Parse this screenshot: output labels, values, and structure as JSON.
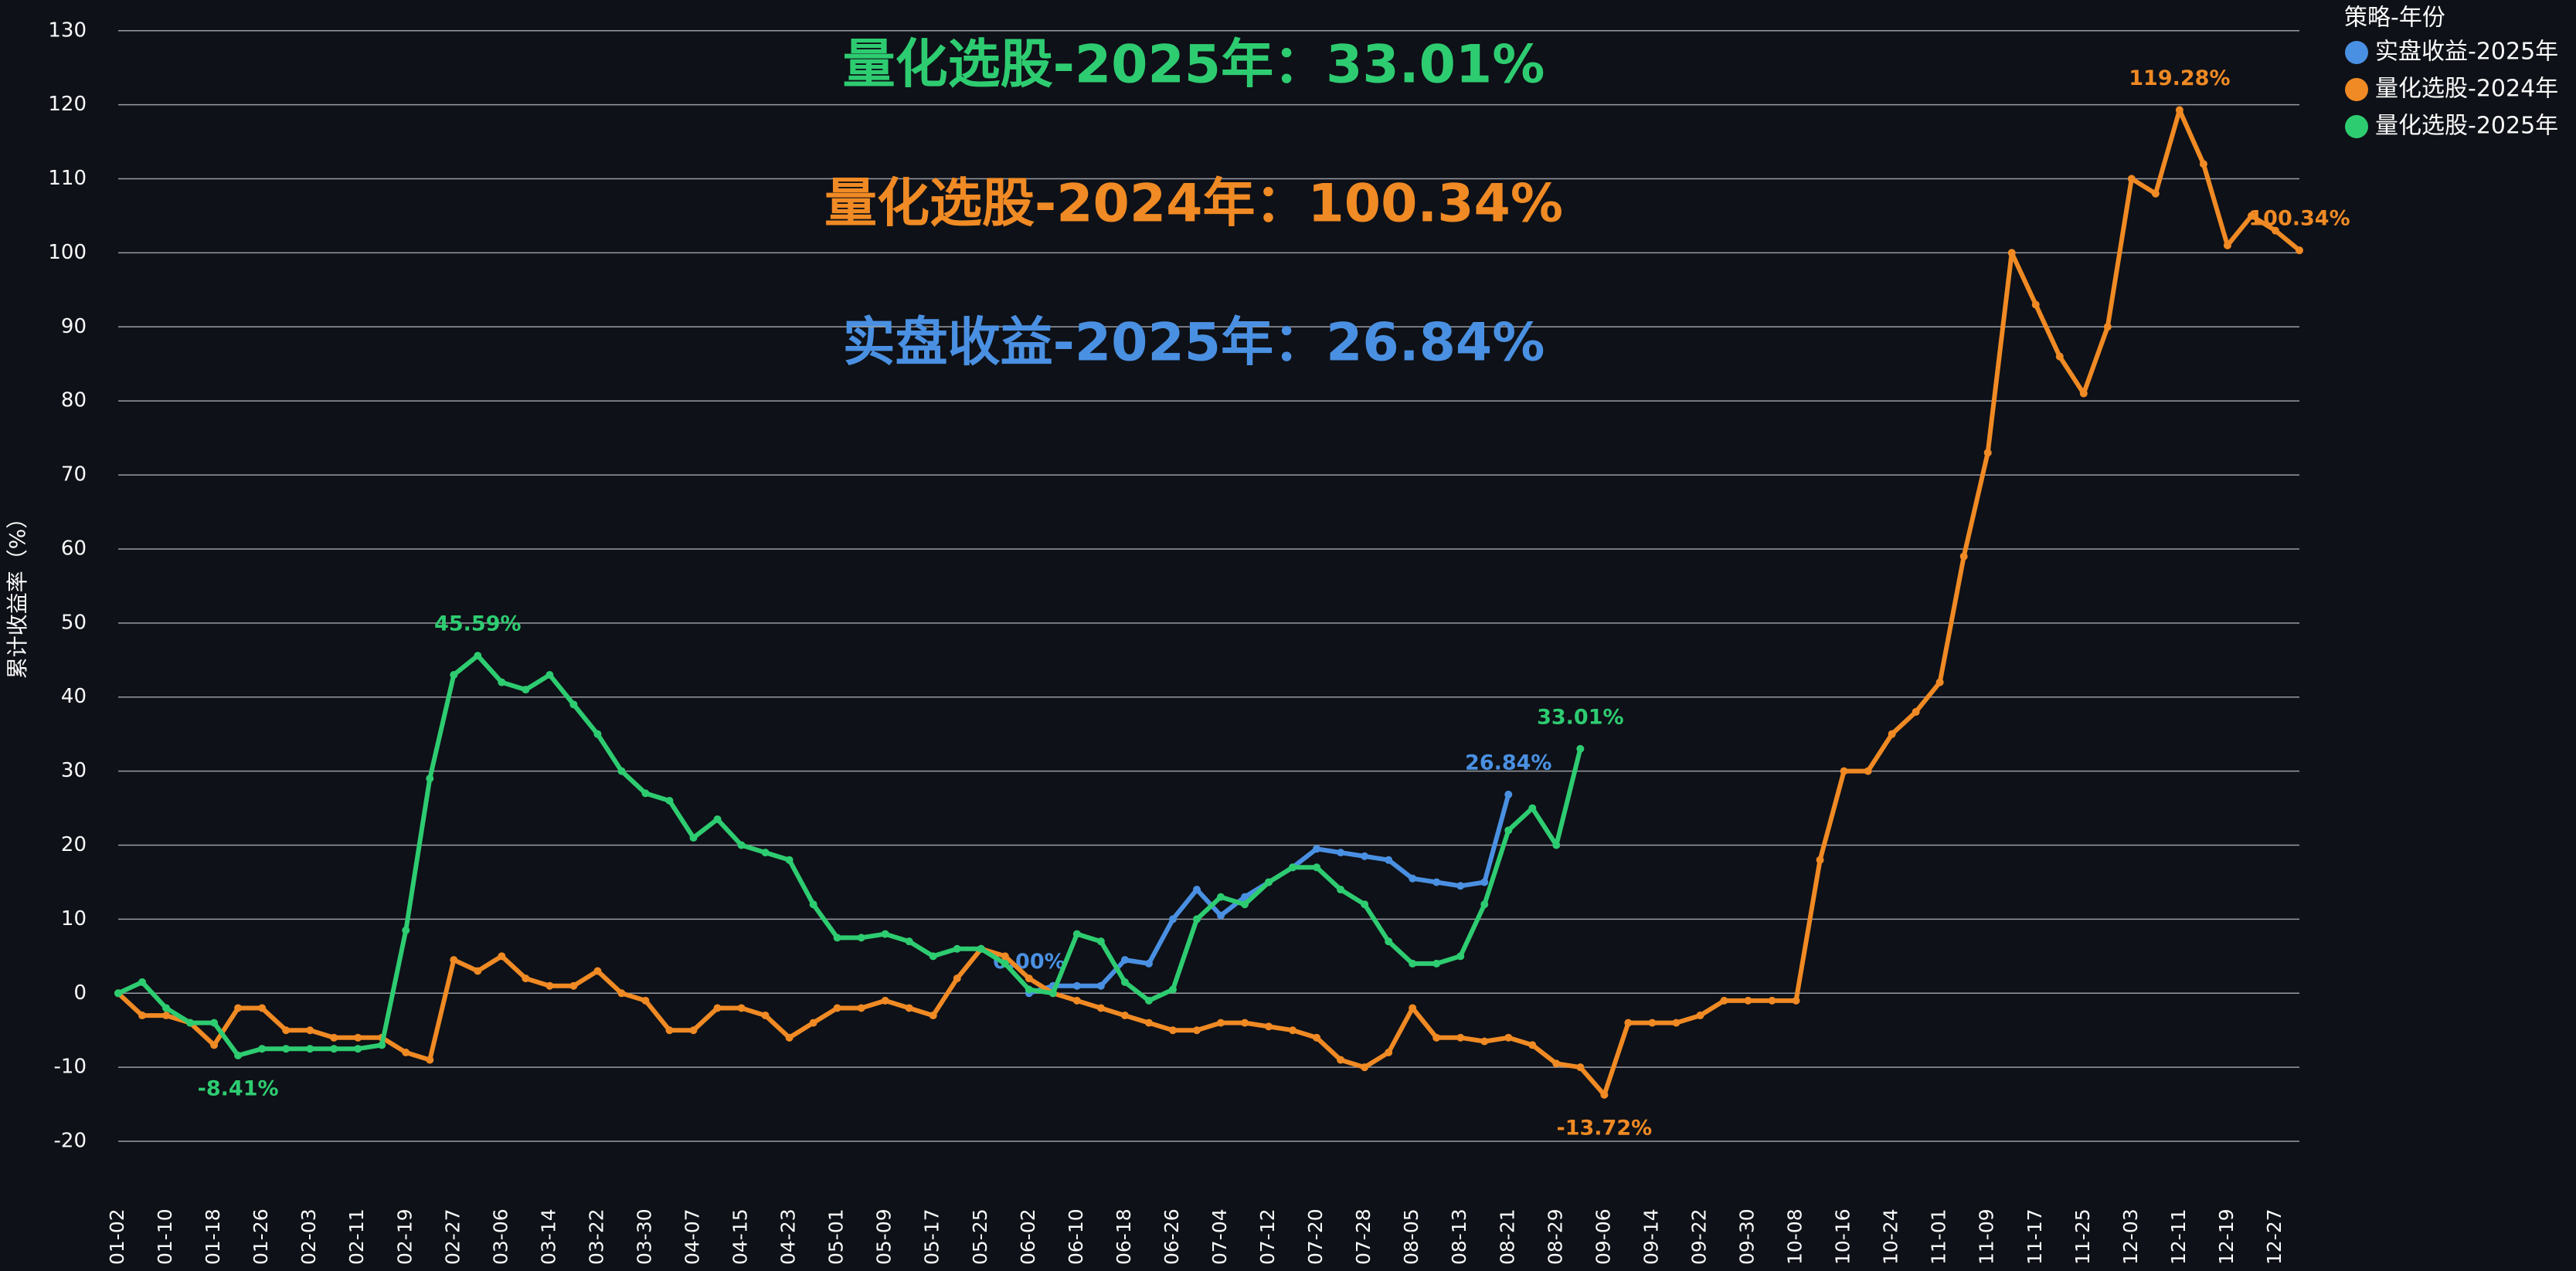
{
  "chart_data": {
    "type": "line",
    "y_label": "累计收益率（%）",
    "legend_title": "策略-年份",
    "legend_position": "right",
    "grid": true,
    "annotations": [
      {
        "text": "量化选股-2025年：33.01%",
        "color": "#2ecc71"
      },
      {
        "text": "量化选股-2024年：100.34%",
        "color": "#f08a24"
      },
      {
        "text": "实盘收益-2025年：26.84%",
        "color": "#4a90e2"
      }
    ],
    "categories": [
      "01-02",
      null,
      "01-10",
      null,
      "01-18",
      null,
      "01-26",
      null,
      "02-03",
      null,
      "02-11",
      null,
      "02-19",
      null,
      "02-27",
      null,
      "03-06",
      null,
      "03-14",
      null,
      "03-22",
      null,
      "03-30",
      null,
      "04-07",
      null,
      "04-15",
      null,
      "04-23",
      null,
      "05-01",
      null,
      "05-09",
      null,
      "05-17",
      null,
      "05-25",
      null,
      "06-02",
      null,
      "06-10",
      null,
      "06-18",
      null,
      "06-26",
      null,
      "07-04",
      null,
      "07-12",
      null,
      "07-20",
      null,
      "07-28",
      null,
      "08-05",
      null,
      "08-13",
      null,
      "08-21",
      null,
      "08-29",
      null,
      "09-06",
      null,
      "09-14",
      null,
      "09-22",
      null,
      "09-30",
      null,
      "10-08",
      null,
      "10-16",
      null,
      "10-24",
      null,
      "11-01",
      null,
      "11-09",
      null,
      "11-17",
      null,
      "11-25",
      null,
      "12-03",
      null,
      "12-11",
      null,
      "12-19",
      null,
      "12-27",
      null
    ],
    "series": [
      {
        "name": "实盘收益-2025年",
        "color": "#4a90e2",
        "values": [
          null,
          null,
          null,
          null,
          null,
          null,
          null,
          null,
          null,
          null,
          null,
          null,
          null,
          null,
          null,
          null,
          null,
          null,
          null,
          null,
          null,
          null,
          null,
          null,
          null,
          null,
          null,
          null,
          null,
          null,
          null,
          null,
          null,
          null,
          null,
          null,
          null,
          null,
          0,
          1,
          1,
          1,
          4.5,
          4,
          10,
          14,
          10.5,
          13,
          15,
          17,
          19.5,
          19,
          18.5,
          18,
          15.5,
          15,
          14.5,
          15,
          26.84,
          null,
          null,
          null,
          null,
          null,
          null,
          null,
          null,
          null,
          null,
          null,
          null,
          null,
          null,
          null,
          null,
          null,
          null,
          null,
          null,
          null,
          null,
          null,
          null,
          null,
          null,
          null,
          null,
          null,
          null,
          null,
          null,
          null
        ],
        "value_labels": [
          null,
          null,
          null,
          null,
          null,
          null,
          null,
          null,
          null,
          null,
          null,
          null,
          null,
          null,
          null,
          null,
          null,
          null,
          null,
          null,
          null,
          null,
          null,
          null,
          null,
          null,
          null,
          null,
          null,
          null,
          null,
          null,
          null,
          null,
          null,
          null,
          null,
          null,
          "0.00%",
          null,
          null,
          null,
          null,
          null,
          null,
          null,
          null,
          null,
          null,
          null,
          null,
          null,
          null,
          null,
          null,
          null,
          null,
          null,
          "26.84%",
          null,
          null,
          null,
          null,
          null,
          null,
          null,
          null,
          null,
          null,
          null,
          null,
          null,
          null,
          null,
          null,
          null,
          null,
          null,
          null,
          null,
          null,
          null,
          null,
          null,
          null,
          null,
          null,
          null,
          null,
          null,
          null,
          null
        ]
      },
      {
        "name": "量化选股-2024年",
        "color": "#f08a24",
        "values": [
          0,
          -3,
          -3,
          -4,
          -7,
          -2,
          -2,
          -5,
          -5,
          -6,
          -6,
          -6,
          -8,
          -9,
          4.5,
          3,
          5,
          2,
          1,
          1,
          3,
          0,
          -1,
          -5,
          -5,
          -2,
          -2,
          -3,
          -6,
          -4,
          -2,
          -2,
          -1,
          -2,
          -3,
          2,
          6,
          5,
          2,
          0,
          -1,
          -2,
          -3,
          -4,
          -5,
          -5,
          -4,
          -4,
          -4.5,
          -5,
          -6,
          -9,
          -10,
          -8,
          -2,
          -6,
          -6,
          -6.5,
          -6,
          -7,
          -9.5,
          -10,
          -13.72,
          -4,
          -4,
          -4,
          -3,
          -1,
          -1,
          -1,
          -1,
          18,
          30,
          30,
          35,
          38,
          42,
          59,
          73,
          100,
          93,
          86,
          81,
          90,
          110,
          108,
          119.28,
          112,
          101,
          105,
          103,
          100.34
        ],
        "value_labels": [
          null,
          null,
          null,
          null,
          null,
          null,
          null,
          null,
          null,
          null,
          null,
          null,
          null,
          null,
          null,
          null,
          null,
          null,
          null,
          null,
          null,
          null,
          null,
          null,
          null,
          null,
          null,
          null,
          null,
          null,
          null,
          null,
          null,
          null,
          null,
          null,
          null,
          null,
          null,
          null,
          null,
          null,
          null,
          null,
          null,
          null,
          null,
          null,
          null,
          null,
          null,
          null,
          null,
          null,
          null,
          null,
          null,
          null,
          null,
          null,
          null,
          null,
          "-13.72%",
          null,
          null,
          null,
          null,
          null,
          null,
          null,
          null,
          null,
          null,
          null,
          null,
          null,
          null,
          null,
          null,
          null,
          null,
          null,
          null,
          null,
          null,
          null,
          "119.28%",
          null,
          null,
          null,
          null,
          "100.34%"
        ]
      },
      {
        "name": "量化选股-2025年",
        "color": "#2ecc71",
        "values": [
          0,
          1.5,
          -2,
          -4,
          -4,
          -8.41,
          -7.5,
          -7.5,
          -7.5,
          -7.5,
          -7.5,
          -7,
          8.5,
          29,
          43,
          45.59,
          42,
          41,
          43,
          39,
          35,
          30,
          27,
          26,
          21,
          23.5,
          20,
          19,
          18,
          12,
          7.5,
          7.5,
          8,
          7,
          5,
          6,
          6,
          4,
          0.5,
          0,
          8,
          7,
          1.5,
          -1,
          0.5,
          10,
          13,
          12,
          15,
          17,
          17,
          14,
          12,
          7,
          4,
          4,
          5,
          12,
          22,
          25,
          20,
          33.01,
          null,
          null,
          null,
          null,
          null,
          null,
          null,
          null,
          null,
          null,
          null,
          null,
          null,
          null,
          null,
          null,
          null,
          null,
          null,
          null,
          null,
          null,
          null,
          null,
          null,
          null,
          null,
          null,
          null,
          null
        ],
        "value_labels": [
          null,
          null,
          null,
          null,
          null,
          "-8.41%",
          null,
          null,
          null,
          null,
          null,
          null,
          null,
          null,
          null,
          "45.59%",
          null,
          null,
          null,
          null,
          null,
          null,
          null,
          null,
          null,
          null,
          null,
          null,
          null,
          null,
          null,
          null,
          null,
          null,
          null,
          null,
          null,
          null,
          null,
          null,
          null,
          null,
          null,
          null,
          null,
          null,
          null,
          null,
          null,
          null,
          null,
          null,
          null,
          null,
          null,
          null,
          null,
          null,
          null,
          null,
          null,
          "33.01%",
          null,
          null,
          null,
          null,
          null,
          null,
          null,
          null,
          null,
          null,
          null,
          null,
          null,
          null,
          null,
          null,
          null,
          null,
          null,
          null,
          null,
          null,
          null,
          null,
          null,
          null,
          null,
          null,
          null,
          null
        ]
      }
    ],
    "ylim": [
      -25,
      133
    ],
    "yticks": [
      -20,
      -10,
      0,
      10,
      20,
      30,
      40,
      50,
      60,
      70,
      80,
      90,
      100,
      110,
      120,
      130
    ]
  }
}
